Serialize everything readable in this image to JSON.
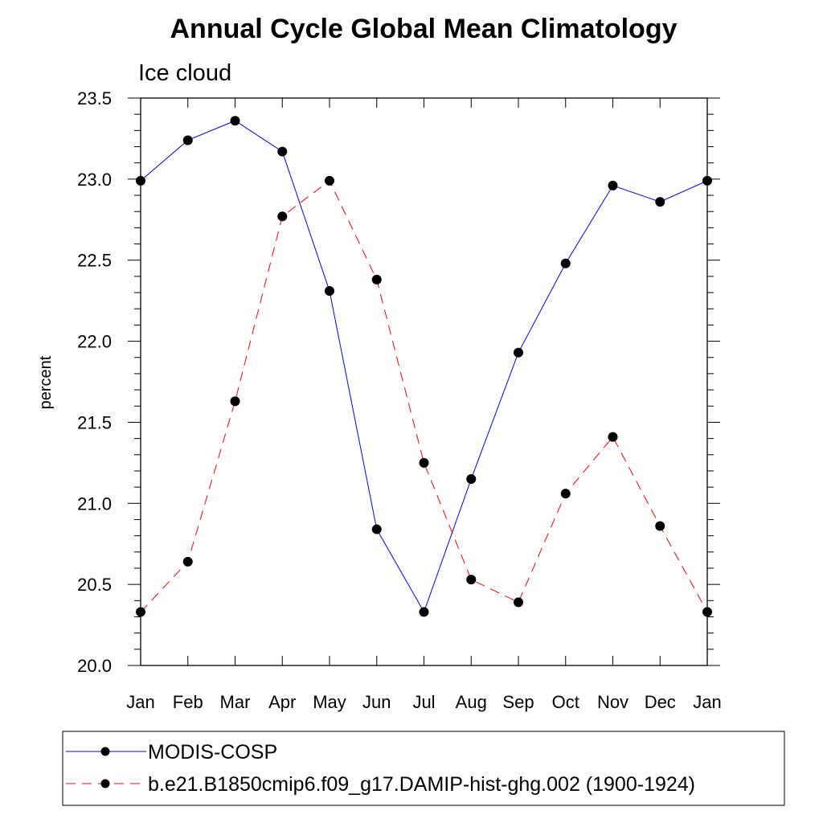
{
  "chart_data": {
    "type": "line",
    "title": "Annual Cycle Global Mean Climatology",
    "subtitle": "Ice cloud",
    "xlabel": "",
    "ylabel": "percent",
    "ylim": [
      20.0,
      23.5
    ],
    "y_ticks": [
      "20.0",
      "20.5",
      "21.0",
      "21.5",
      "22.0",
      "22.5",
      "23.0",
      "23.5"
    ],
    "categories": [
      "Jan",
      "Feb",
      "Mar",
      "Apr",
      "May",
      "Jun",
      "Jul",
      "Aug",
      "Sep",
      "Oct",
      "Nov",
      "Dec",
      "Jan"
    ],
    "grid": false,
    "legend_position": "bottom",
    "series": [
      {
        "name": "MODIS-COSP",
        "color": "#0000ff",
        "line_style": "solid",
        "marker": "filled-circle",
        "values": [
          22.99,
          23.24,
          23.36,
          23.17,
          22.31,
          20.84,
          20.33,
          21.15,
          21.93,
          22.48,
          22.96,
          22.86,
          22.99
        ]
      },
      {
        "name": "b.e21.B1850cmip6.f09_g17.DAMIP-hist-ghg.002 (1900-1924)",
        "color": "#ff0000",
        "line_style": "dashed",
        "marker": "filled-circle",
        "values": [
          20.33,
          20.64,
          21.63,
          22.77,
          22.99,
          22.38,
          21.25,
          20.53,
          20.39,
          21.06,
          21.41,
          20.86,
          20.33
        ]
      }
    ]
  }
}
